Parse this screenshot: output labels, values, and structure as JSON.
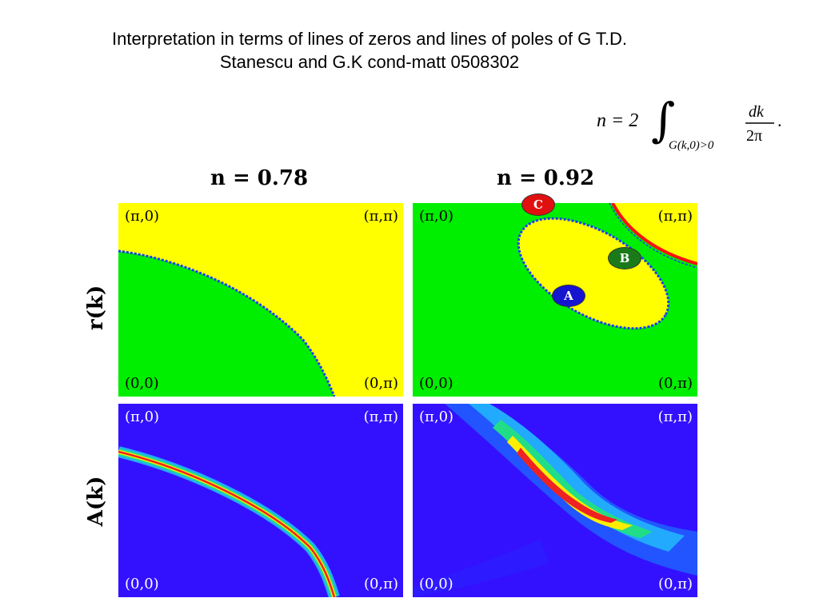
{
  "title": {
    "line1": "Interpretation in terms of lines of zeros and lines of poles of G T.D.",
    "line2": "Stanescu and G.K cond-matt 0508302"
  },
  "formula": {
    "lhs": "n = 2",
    "subscript": "G(k,0)>0",
    "numerator": "dk",
    "denominator": "2π",
    "end": "."
  },
  "columns": [
    "n = 0.78",
    "n = 0.92"
  ],
  "rows": [
    "r(k)",
    "A(k)"
  ],
  "corners": {
    "top_left": "(π,0)",
    "top_right": "(π,π)",
    "bottom_left": "(0,0)",
    "bottom_right": "(0,π)"
  },
  "markers": {
    "a": "A",
    "b": "B",
    "c": "C"
  },
  "colors": {
    "zero_region": "#ffff00",
    "positive_region": "#00ee00",
    "zero_line": "#1a3cff",
    "pole_line": "#ff1010",
    "spectral_background": "#3311ff",
    "marker_a": "#1515d0",
    "marker_b": "#1a7a1a",
    "marker_c": "#e01010"
  }
}
